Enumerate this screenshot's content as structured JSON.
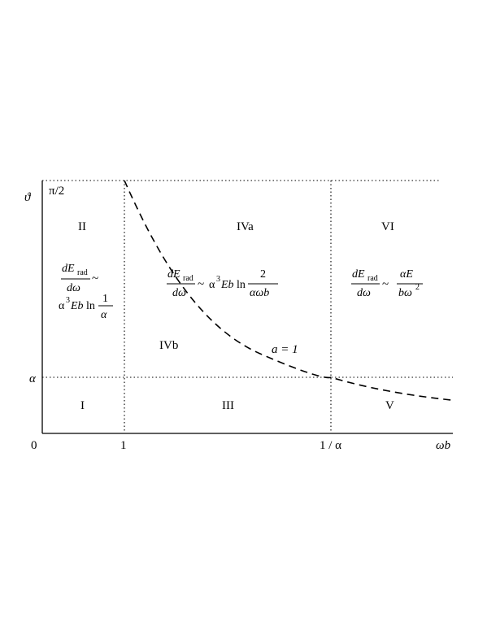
{
  "axes": {
    "y_label": "ϑ",
    "x_label": "ωb",
    "origin_label": "0",
    "x_ticks": [
      "1",
      "1 / α"
    ],
    "y_ticks": [
      "π/2",
      "α"
    ]
  },
  "regions": {
    "I": "I",
    "II": "II",
    "III": "III",
    "IVa": "IVa",
    "IVb": "IVb",
    "V": "V",
    "VI": "VI"
  },
  "curve": {
    "label": "a = 1",
    "style": "dashed"
  },
  "formulas": {
    "region_II": {
      "num": "dE",
      "num_sub": "rad",
      "den": "dω",
      "rel": "~",
      "rhs_prefix": "α",
      "rhs_exp": "3",
      "rhs_mid": "Eb",
      "rhs_ln": "ln",
      "rhs_num": "1",
      "rhs_den": "α"
    },
    "region_IV": {
      "num": "dE",
      "num_sub": "rad",
      "den": "dω",
      "rel": "~",
      "rhs_prefix": "α",
      "rhs_exp": "3",
      "rhs_mid": "Eb",
      "rhs_ln": "ln",
      "rhs_num": "2",
      "rhs_den": "αωb"
    },
    "region_VI": {
      "num": "dE",
      "num_sub": "rad",
      "den": "dω",
      "rel": "~",
      "rhs_num": "αE",
      "rhs_den": "bω",
      "rhs_den_exp": "2"
    }
  }
}
